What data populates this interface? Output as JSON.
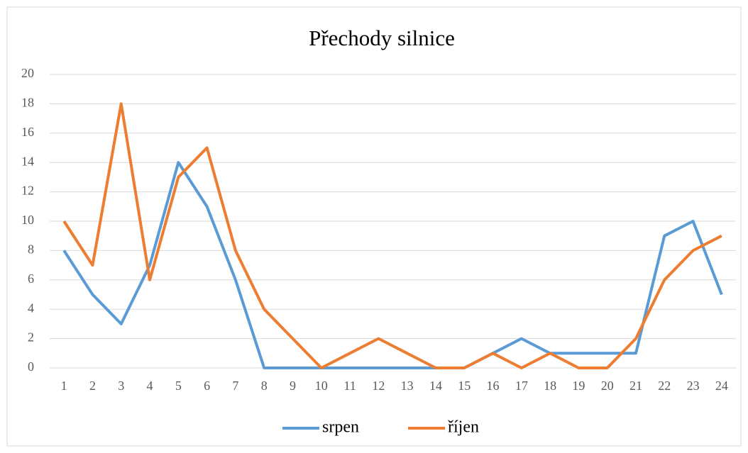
{
  "chart_data": {
    "type": "line",
    "title": "Přechody silnice",
    "categories": [
      "1",
      "2",
      "3",
      "4",
      "5",
      "6",
      "7",
      "8",
      "9",
      "10",
      "11",
      "12",
      "13",
      "14",
      "15",
      "16",
      "17",
      "18",
      "19",
      "20",
      "21",
      "22",
      "23",
      "24"
    ],
    "series": [
      {
        "name": "srpen",
        "color": "#5b9bd5",
        "values": [
          8,
          5,
          3,
          7,
          14,
          11,
          6,
          0,
          0,
          0,
          0,
          0,
          0,
          0,
          0,
          1,
          2,
          1,
          1,
          1,
          1,
          9,
          10,
          5
        ]
      },
      {
        "name": "říjen",
        "color": "#ed7d31",
        "values": [
          10,
          7,
          18,
          6,
          13,
          15,
          8,
          4,
          2,
          0,
          1,
          2,
          1,
          0,
          0,
          1,
          0,
          1,
          0,
          0,
          2,
          6,
          8,
          9
        ]
      }
    ],
    "ylim": [
      0,
      20
    ],
    "yticks": [
      0,
      2,
      4,
      6,
      8,
      10,
      12,
      14,
      16,
      18,
      20
    ],
    "grid": true,
    "legend": "bottom"
  }
}
